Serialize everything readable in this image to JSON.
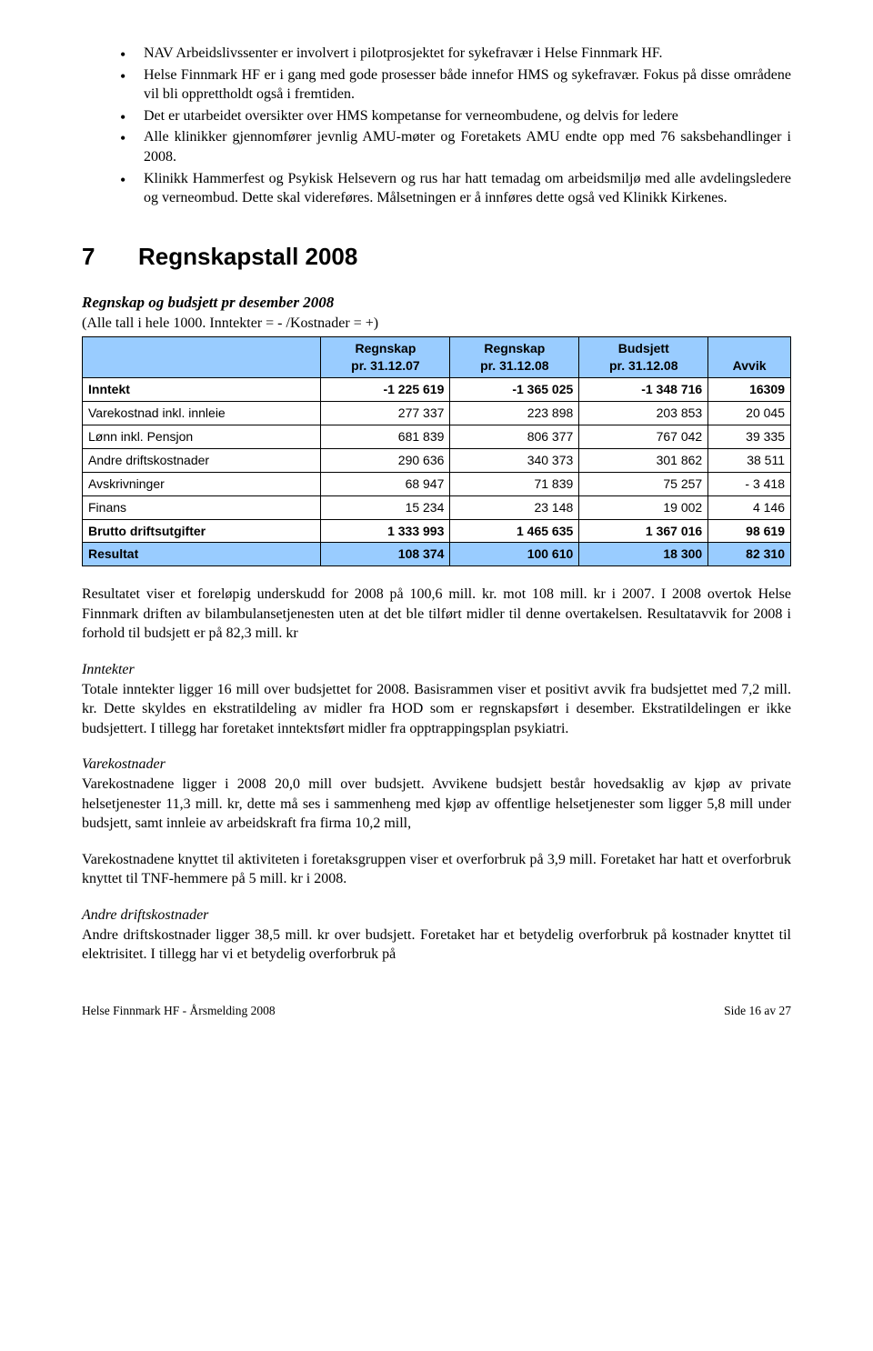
{
  "bullets": [
    "NAV Arbeidslivssenter er involvert i pilotprosjektet for sykefravær i Helse Finnmark HF.",
    "Helse Finnmark HF er i gang med gode prosesser både innefor HMS og sykefravær. Fokus på disse områdene vil bli opprettholdt også i fremtiden.",
    "Det er utarbeidet oversikter over HMS kompetanse for verneombudene, og delvis for ledere",
    "Alle klinikker gjennomfører jevnlig AMU-møter og Foretakets AMU endte opp med 76 saksbehandlinger i 2008.",
    "Klinikk Hammerfest og Psykisk Helsevern og rus har hatt temadag om arbeidsmiljø med alle avdelingsledere og verneombud. Dette skal videreføres. Målsetningen er å innføres dette også ved Klinikk Kirkenes."
  ],
  "section": {
    "num": "7",
    "title": "Regnskapstall 2008"
  },
  "sub_italic": "Regnskap og budsjett pr desember 2008",
  "sub_note": "(Alle tall i hele 1000. Inntekter = - /Kostnader = +)",
  "table": {
    "header_bg": "#99ccff",
    "columns": [
      "",
      "Regnskap pr. 31.12.07",
      "Regnskap pr. 31.12.08",
      "Budsjett pr. 31.12.08",
      "Avvik"
    ],
    "col_multiline": [
      "",
      [
        "Regnskap",
        "pr. 31.12.07"
      ],
      [
        "Regnskap",
        "pr. 31.12.08"
      ],
      [
        "Budsjett",
        "pr. 31.12.08"
      ],
      "Avvik"
    ],
    "rows": [
      {
        "label": "Inntekt",
        "vals": [
          "-1 225 619",
          "-1 365 025",
          "-1 348 716",
          "16309"
        ],
        "bold": true
      },
      {
        "label": "Varekostnad inkl. innleie",
        "vals": [
          "277 337",
          "223 898",
          "203 853",
          "20 045"
        ]
      },
      {
        "label": "Lønn inkl. Pensjon",
        "vals": [
          "681 839",
          "806 377",
          "767 042",
          "39 335"
        ]
      },
      {
        "label": "Andre driftskostnader",
        "vals": [
          "290 636",
          "340 373",
          "301 862",
          "38 511"
        ]
      },
      {
        "label": "Avskrivninger",
        "vals": [
          "68 947",
          "71 839",
          "75 257",
          "- 3 418"
        ]
      },
      {
        "label": "Finans",
        "vals": [
          "15 234",
          "23 148",
          "19 002",
          "4 146"
        ]
      },
      {
        "label": "Brutto driftsutgifter",
        "vals": [
          "1 333 993",
          "1 465 635",
          "1 367 016",
          "98 619"
        ],
        "bold": true
      },
      {
        "label": "Resultat",
        "vals": [
          "108 374",
          "100 610",
          "18 300",
          "82 310"
        ],
        "hl": true
      }
    ]
  },
  "paras": {
    "p1": "Resultatet viser et foreløpig underskudd for 2008 på 100,6 mill. kr. mot 108 mill. kr i 2007. I 2008 overtok Helse Finnmark driften av bilambulansetjenesten uten at det ble tilført midler til denne overtakelsen. Resultatavvik for 2008 i forhold til budsjett er på 82,3 mill. kr",
    "h2": "Inntekter",
    "p2": "Totale inntekter ligger 16 mill over budsjettet for 2008. Basisrammen viser et positivt avvik fra budsjettet med 7,2 mill. kr. Dette skyldes en ekstratildeling av midler fra HOD som er regnskapsført i desember. Ekstratildelingen er ikke budsjettert. I tillegg har foretaket inntektsført midler fra opptrappingsplan psykiatri.",
    "h3": "Varekostnader",
    "p3": "Varekostnadene ligger i 2008 20,0 mill over budsjett. Avvikene budsjett består hovedsaklig av kjøp av private helsetjenester 11,3 mill. kr, dette må ses i sammenheng med kjøp av offentlige helsetjenester som ligger 5,8 mill under budsjett, samt innleie av arbeidskraft fra firma 10,2 mill,",
    "p4": "Varekostnadene knyttet til aktiviteten i foretaksgruppen viser et overforbruk på 3,9 mill. Foretaket har hatt et overforbruk knyttet til TNF-hemmere på 5 mill. kr i 2008.",
    "h5": "Andre driftskostnader",
    "p5": "Andre driftskostnader ligger 38,5 mill. kr over budsjett. Foretaket har  et betydelig overforbruk på kostnader knyttet til elektrisitet. I tillegg har vi et betydelig overforbruk på"
  },
  "footer": {
    "left": "Helse Finnmark HF - Årsmelding 2008",
    "right": "Side 16 av 27"
  }
}
